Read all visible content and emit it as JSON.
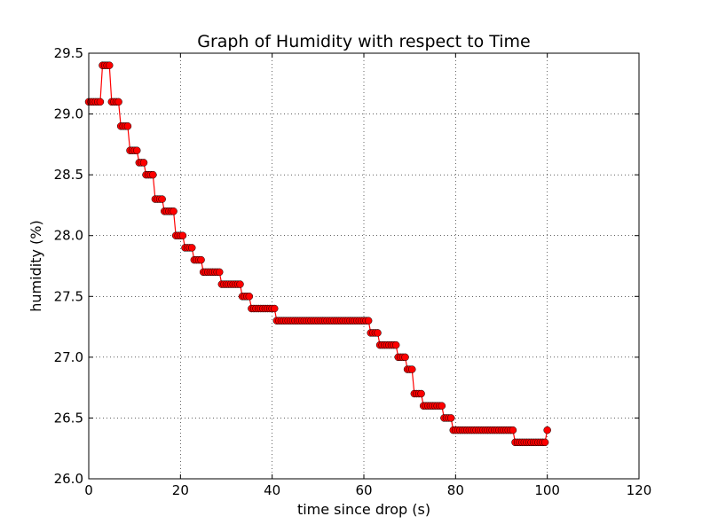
{
  "chart_data": {
    "type": "line",
    "title": "Graph of Humidity with respect to Time",
    "xlabel": "time since drop (s)",
    "ylabel": "humidity (%)",
    "xlim": [
      0,
      120
    ],
    "ylim": [
      26.0,
      29.5
    ],
    "xticks": [
      0,
      20,
      40,
      60,
      80,
      100,
      120
    ],
    "xtick_labels": [
      "0",
      "20",
      "40",
      "60",
      "80",
      "100",
      "120"
    ],
    "yticks": [
      26.0,
      26.5,
      27.0,
      27.5,
      28.0,
      28.5,
      29.0,
      29.5
    ],
    "ytick_labels": [
      "26.0",
      "26.5",
      "27.0",
      "27.5",
      "28.0",
      "28.5",
      "29.0",
      "29.5"
    ],
    "grid": true,
    "series": [
      {
        "line_color": "#ff0000",
        "marker_color": "#ff0000",
        "marker": "circle",
        "x": [
          0,
          0.5,
          1,
          1.5,
          2,
          2.5,
          3,
          3.5,
          4,
          4.5,
          5,
          5.5,
          6,
          6.5,
          7,
          7.5,
          8,
          8.5,
          9,
          9.5,
          10,
          10.5,
          11,
          11.5,
          12,
          12.5,
          13,
          13.5,
          14,
          14.5,
          15,
          15.5,
          16,
          16.5,
          17,
          17.5,
          18,
          18.5,
          19,
          19.5,
          20,
          20.5,
          21,
          21.5,
          22,
          22.5,
          23,
          23.5,
          24,
          24.5,
          25,
          25.5,
          26,
          26.5,
          27,
          27.5,
          28,
          28.5,
          29,
          29.5,
          30,
          30.5,
          31,
          31.5,
          32,
          32.5,
          33,
          33.5,
          34,
          34.5,
          35,
          35.5,
          36,
          36.5,
          37,
          37.5,
          38,
          38.5,
          39,
          39.5,
          40,
          40.5,
          41,
          41.5,
          42,
          42.5,
          43,
          43.5,
          44,
          44.5,
          45,
          45.5,
          46,
          46.5,
          47,
          47.5,
          48,
          48.5,
          49,
          49.5,
          50,
          50.5,
          51,
          51.5,
          52,
          52.5,
          53,
          53.5,
          54,
          54.5,
          55,
          55.5,
          56,
          56.5,
          57,
          57.5,
          58,
          58.5,
          59,
          59.5,
          60,
          60.5,
          61,
          61.5,
          62,
          62.5,
          63,
          63.5,
          64,
          64.5,
          65,
          65.5,
          66,
          66.5,
          67,
          67.5,
          68,
          68.5,
          69,
          69.5,
          70,
          70.5,
          71,
          71.5,
          72,
          72.5,
          73,
          73.5,
          74,
          74.5,
          75,
          75.5,
          76,
          76.5,
          77,
          77.5,
          78,
          78.5,
          79,
          79.5,
          80,
          80.5,
          81,
          81.5,
          82,
          82.5,
          83,
          83.5,
          84,
          84.5,
          85,
          85.5,
          86,
          86.5,
          87,
          87.5,
          88,
          88.5,
          89,
          89.5,
          90,
          90.5,
          91,
          91.5,
          92,
          92.5,
          93,
          93.5,
          94,
          94.5,
          95,
          95.5,
          96,
          96.5,
          97,
          97.5,
          98,
          98.5,
          99,
          99.5,
          100
        ],
        "y": [
          29.1,
          29.1,
          29.1,
          29.1,
          29.1,
          29.1,
          29.4,
          29.4,
          29.4,
          29.4,
          29.1,
          29.1,
          29.1,
          29.1,
          28.9,
          28.9,
          28.9,
          28.9,
          28.7,
          28.7,
          28.7,
          28.7,
          28.6,
          28.6,
          28.6,
          28.5,
          28.5,
          28.5,
          28.5,
          28.3,
          28.3,
          28.3,
          28.3,
          28.2,
          28.2,
          28.2,
          28.2,
          28.2,
          28.0,
          28.0,
          28.0,
          28.0,
          27.9,
          27.9,
          27.9,
          27.9,
          27.8,
          27.8,
          27.8,
          27.8,
          27.7,
          27.7,
          27.7,
          27.7,
          27.7,
          27.7,
          27.7,
          27.7,
          27.6,
          27.6,
          27.6,
          27.6,
          27.6,
          27.6,
          27.6,
          27.6,
          27.6,
          27.5,
          27.5,
          27.5,
          27.5,
          27.4,
          27.4,
          27.4,
          27.4,
          27.4,
          27.4,
          27.4,
          27.4,
          27.4,
          27.4,
          27.4,
          27.3,
          27.3,
          27.3,
          27.3,
          27.3,
          27.3,
          27.3,
          27.3,
          27.3,
          27.3,
          27.3,
          27.3,
          27.3,
          27.3,
          27.3,
          27.3,
          27.3,
          27.3,
          27.3,
          27.3,
          27.3,
          27.3,
          27.3,
          27.3,
          27.3,
          27.3,
          27.3,
          27.3,
          27.3,
          27.3,
          27.3,
          27.3,
          27.3,
          27.3,
          27.3,
          27.3,
          27.3,
          27.3,
          27.3,
          27.3,
          27.3,
          27.2,
          27.2,
          27.2,
          27.2,
          27.1,
          27.1,
          27.1,
          27.1,
          27.1,
          27.1,
          27.1,
          27.1,
          27.0,
          27.0,
          27.0,
          27.0,
          26.9,
          26.9,
          26.9,
          26.7,
          26.7,
          26.7,
          26.7,
          26.6,
          26.6,
          26.6,
          26.6,
          26.6,
          26.6,
          26.6,
          26.6,
          26.6,
          26.5,
          26.5,
          26.5,
          26.5,
          26.4,
          26.4,
          26.4,
          26.4,
          26.4,
          26.4,
          26.4,
          26.4,
          26.4,
          26.4,
          26.4,
          26.4,
          26.4,
          26.4,
          26.4,
          26.4,
          26.4,
          26.4,
          26.4,
          26.4,
          26.4,
          26.4,
          26.4,
          26.4,
          26.4,
          26.4,
          26.4,
          26.3,
          26.3,
          26.3,
          26.3,
          26.3,
          26.3,
          26.3,
          26.3,
          26.3,
          26.3,
          26.3,
          26.3,
          26.3,
          26.3,
          26.4
        ]
      }
    ]
  }
}
